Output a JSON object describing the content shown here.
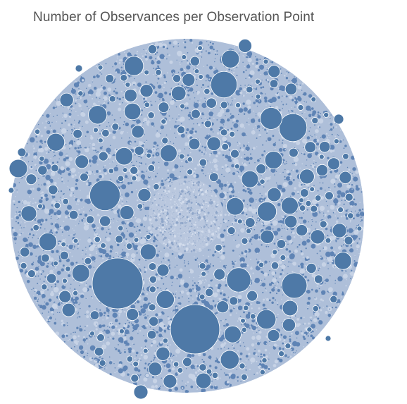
{
  "title": "Number of Observances per Observation Point",
  "colors": {
    "bubble": "#4e79a7",
    "bubble_stroke": "#ffffff",
    "texture_light": "#aebfd9",
    "texture_dark": "#5f84b5",
    "cluster_fill": "#b9c7de",
    "title_text": "#555555"
  },
  "chart_data": {
    "type": "packed-bubble",
    "title": "Number of Observances per Observation Point",
    "measure": "Number of Observances",
    "dimension": "Observation Point",
    "legend": "none",
    "grid": false,
    "note": "Thousands of small bubbles; the largest visible ones are listed with approximate relative size",
    "largest_bubbles": [
      {
        "rank": 1,
        "relative_size": 1.0
      },
      {
        "rank": 2,
        "relative_size": 0.97
      },
      {
        "rank": 3,
        "relative_size": 0.6
      },
      {
        "rank": 4,
        "relative_size": 0.55
      },
      {
        "rank": 5,
        "relative_size": 0.52
      },
      {
        "rank": 6,
        "relative_size": 0.5
      },
      {
        "rank": 7,
        "relative_size": 0.48
      },
      {
        "rank": 8,
        "relative_size": 0.43
      },
      {
        "rank": 9,
        "relative_size": 0.38
      },
      {
        "rank": 10,
        "relative_size": 0.36
      },
      {
        "rank": 11,
        "relative_size": 0.35
      },
      {
        "rank": 12,
        "relative_size": 0.34
      }
    ]
  }
}
